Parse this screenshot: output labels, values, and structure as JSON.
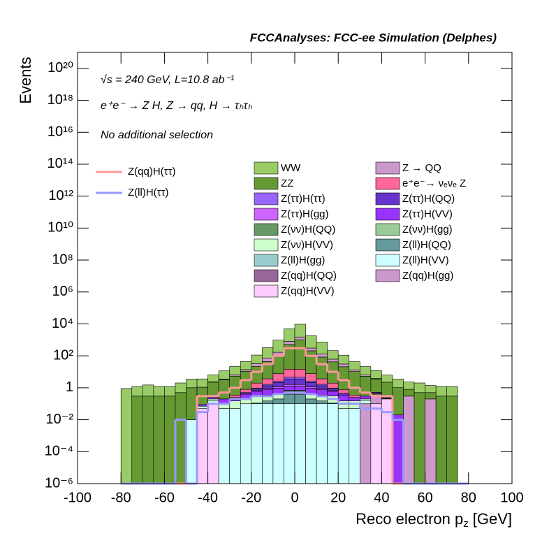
{
  "chart_data": {
    "type": "stacked_histogram",
    "title": "FCCAnalyses: FCC-ee Simulation (Delphes)",
    "energy_text": "√s = 240 GeV, L=10.8 ab⁻¹",
    "process_text": "e⁺e⁻ → Z H, Z → qq, H → τₕτₕ",
    "selection_text": "No additional selection",
    "y_label": "Events",
    "x_label": "Reco electron p",
    "x_label_subscript": "z",
    "x_label_unit": "[GeV]",
    "log_y": true,
    "xlim": [
      -100,
      100
    ],
    "xticks": [
      -100,
      -80,
      -60,
      -40,
      -20,
      0,
      20,
      40,
      60,
      80,
      100
    ],
    "ylim": [
      1e-06,
      1e+21
    ],
    "yticks": [
      {
        "value": 1e-06,
        "label": "10⁻⁶"
      },
      {
        "value": 0.0001,
        "label": "10⁻⁴"
      },
      {
        "value": 0.01,
        "label": "10⁻²"
      },
      1,
      {
        "value": 100,
        "label": "10²"
      },
      {
        "value": 10000.0,
        "label": "10⁴"
      },
      {
        "value": 1000000.0,
        "label": "10⁶"
      },
      {
        "value": 100000000.0,
        "label": "10⁸"
      },
      {
        "value": 10000000000.0,
        "label": "10¹⁰"
      },
      {
        "value": 1000000000000.0,
        "label": "10¹²"
      },
      {
        "value": 100000000000000.0,
        "label": "10¹⁴"
      },
      {
        "value": 1e+16,
        "label": "10¹⁶"
      },
      {
        "value": 1e+18,
        "label": "10¹⁸"
      },
      {
        "value": 1e+20,
        "label": "10²⁰"
      }
    ],
    "bins": [
      -80,
      -75,
      -70,
      -65,
      -60,
      -55,
      -50,
      -45,
      -40,
      -35,
      -30,
      -25,
      -20,
      -15,
      -10,
      -5,
      0,
      5,
      10,
      15,
      20,
      25,
      30,
      35,
      40,
      45,
      50,
      55,
      60,
      65,
      70,
      75,
      80
    ],
    "series": [
      {
        "name": "WW",
        "color": "#99cc66",
        "values": [
          0.9,
          0.9,
          1.2,
          0.9,
          0.9,
          1.5,
          2.5,
          2.5,
          4,
          8,
          15,
          30,
          80,
          250,
          800,
          4000,
          8000,
          1500,
          600,
          150,
          80,
          30,
          15,
          8,
          4,
          2.5,
          1.5,
          1.5,
          0.9,
          0.9,
          0.9,
          0
        ]
      },
      {
        "name": "Z → QQ",
        "color": "#cc99cc",
        "values": [
          0,
          0,
          0,
          0,
          0,
          0,
          0,
          0,
          0.1,
          0.3,
          1,
          3,
          10,
          30,
          60,
          300,
          500,
          100,
          50,
          20,
          10,
          3,
          1,
          0.3,
          0,
          0,
          0,
          0,
          0,
          0,
          0,
          0
        ]
      },
      {
        "name": "ZZ",
        "color": "#669933",
        "values": [
          0,
          0.3,
          0.3,
          0.3,
          0.3,
          0.5,
          1,
          1,
          2,
          3,
          5,
          10,
          20,
          40,
          100,
          500,
          1000,
          200,
          80,
          40,
          20,
          10,
          5,
          3,
          2,
          1,
          0.5,
          0.5,
          0.3,
          0.3,
          0.3,
          0
        ]
      },
      {
        "name": "e⁺e⁻→ νₑνₑ Z",
        "color": "#ff6699",
        "values": [
          0,
          0,
          0,
          0,
          0,
          0,
          0,
          0,
          0,
          0,
          0.1,
          0.3,
          1,
          2,
          5,
          10,
          10,
          5,
          2,
          1,
          0.3,
          0.1,
          0,
          0,
          0,
          0,
          0,
          0,
          0,
          0,
          0,
          0
        ]
      },
      {
        "name": "Z(ττ)H(ττ)",
        "color": "#9966ff",
        "values": [
          0,
          0,
          0,
          0,
          0,
          0,
          0,
          0,
          0,
          0,
          0,
          0,
          0.1,
          0.3,
          0.5,
          1,
          1,
          0.5,
          0.3,
          0.1,
          0,
          0,
          0,
          0,
          0,
          0,
          0,
          0,
          0,
          0,
          0,
          0
        ]
      },
      {
        "name": "Z(ττ)H(QQ)",
        "color": "#6633cc",
        "values": [
          0,
          0,
          0,
          0,
          0,
          0,
          0,
          0,
          0,
          0,
          0,
          0.1,
          0.2,
          0.5,
          1,
          2,
          2,
          1,
          0.5,
          0.2,
          0.1,
          0,
          0,
          0,
          0,
          0,
          0,
          0,
          0,
          0,
          0,
          0
        ]
      },
      {
        "name": "Z(ττ)H(gg)",
        "color": "#cc66ff",
        "values": [
          0,
          0,
          0,
          0,
          0,
          0,
          0,
          0,
          0,
          0,
          0,
          0,
          0.05,
          0.1,
          0.2,
          0.3,
          0.3,
          0.2,
          0.1,
          0.05,
          0,
          0,
          0,
          0,
          0,
          0,
          0,
          0,
          0,
          0,
          0,
          0
        ]
      },
      {
        "name": "Z(ττ)H(VV)",
        "color": "#9933ff",
        "values": [
          0,
          0,
          0,
          0,
          0,
          0,
          0,
          0.02,
          0.05,
          0.1,
          0.1,
          0.2,
          0.3,
          0.4,
          0.5,
          0.6,
          0.6,
          0.5,
          0.4,
          0.3,
          0.2,
          0.1,
          0.1,
          0.05,
          0.03,
          0.02,
          0,
          0,
          0,
          0,
          0,
          0
        ]
      },
      {
        "name": "Z(νν)H(QQ)",
        "color": "#669966",
        "values": [
          0,
          0,
          0,
          0,
          0,
          0,
          0,
          0,
          0,
          0,
          0,
          0,
          0,
          0,
          0.05,
          0.1,
          0.1,
          0.05,
          0,
          0,
          0,
          0,
          0,
          0,
          0,
          0,
          0,
          0,
          0,
          0,
          0,
          0
        ]
      },
      {
        "name": "Z(νν)H(gg)",
        "color": "#99cc99",
        "values": [
          0,
          0,
          0,
          0,
          0,
          0,
          0,
          0,
          0,
          0,
          0,
          0,
          0,
          0,
          0,
          0,
          0,
          0,
          0,
          0,
          0,
          0,
          0,
          0,
          0,
          0,
          0,
          0,
          0,
          0,
          0,
          0
        ]
      },
      {
        "name": "Z(νν)H(VV)",
        "color": "#ccffcc",
        "values": [
          0,
          0,
          0,
          0,
          0,
          0,
          0,
          0,
          0.05,
          0.05,
          0.1,
          0.1,
          0.2,
          0.2,
          0.2,
          0.2,
          0.2,
          0.2,
          0.2,
          0.2,
          0.1,
          0.1,
          0.05,
          0.05,
          0,
          0,
          0,
          0,
          0,
          0,
          0,
          0
        ]
      },
      {
        "name": "Z(ll)H(QQ)",
        "color": "#669999",
        "values": [
          0,
          0,
          0,
          0,
          0,
          0,
          0,
          0,
          0,
          0,
          0,
          0,
          0.01,
          0.05,
          0.1,
          0.3,
          0.3,
          0.1,
          0.05,
          0.01,
          0,
          0,
          0,
          0,
          0,
          0,
          0,
          0,
          0,
          0,
          0,
          0
        ]
      },
      {
        "name": "Z(ll)H(gg)",
        "color": "#99cccc",
        "values": [
          0,
          0,
          0,
          0,
          0,
          0,
          0,
          0,
          0,
          0,
          0,
          0,
          0,
          0,
          0,
          0,
          0,
          0,
          0,
          0,
          0,
          0,
          0,
          0,
          0,
          0,
          0,
          0,
          0,
          0,
          0,
          0
        ]
      },
      {
        "name": "Z(ll)H(VV)",
        "color": "#ccffff",
        "values": [
          0,
          0,
          0,
          0,
          0,
          0,
          0.01,
          0.02,
          0.05,
          0.05,
          0.05,
          0.1,
          0.1,
          0.1,
          0.1,
          0.1,
          0.1,
          0.1,
          0.1,
          0.1,
          0.05,
          0.05,
          0.05,
          0.02,
          0.01,
          0,
          0,
          0,
          0,
          0,
          0,
          0
        ]
      },
      {
        "name": "Z(qq)H(QQ)",
        "color": "#996699",
        "values": [
          0,
          0,
          0,
          0,
          0,
          0,
          0,
          0,
          0,
          0,
          0,
          0,
          0,
          0,
          0,
          0,
          0,
          0,
          0,
          0,
          0,
          0,
          0,
          0,
          0,
          0,
          0,
          0,
          0,
          0,
          0,
          0
        ]
      },
      {
        "name": "Z(qq)H(gg)",
        "color": "#cc99cc",
        "values": [
          0,
          0,
          0,
          0,
          0,
          0,
          0,
          0,
          0,
          0,
          0,
          0,
          0,
          0,
          0,
          0,
          0,
          0,
          0,
          0,
          0,
          0,
          0.1,
          0.3,
          0,
          0,
          0.3,
          0,
          0.2,
          0,
          0,
          0
        ]
      },
      {
        "name": "Z(qq)H(VV)",
        "color": "#ffccff",
        "values": [
          0,
          0,
          0,
          0,
          0,
          0,
          0,
          0.05,
          0.1,
          0,
          0,
          0,
          0,
          0,
          0,
          0,
          0,
          0,
          0,
          0,
          0,
          0,
          0,
          0.1,
          0.2,
          0,
          0,
          0,
          0,
          0,
          0,
          0
        ]
      }
    ],
    "line_series": [
      {
        "name": "Z(qq)H(ττ)",
        "color": "#ff9999",
        "values": [
          0,
          0,
          0,
          0,
          0,
          0,
          0,
          0.3,
          0.3,
          0.5,
          1,
          3,
          10,
          30,
          100,
          300,
          300,
          100,
          30,
          10,
          3,
          1,
          0.5,
          0.3,
          0.3,
          0,
          0,
          0,
          0,
          0,
          0,
          0
        ]
      },
      {
        "name": "Z(ll)H(ττ)",
        "color": "#9999ff",
        "values": [
          0,
          0,
          0,
          0,
          0,
          0.01,
          0,
          0.03,
          0.1,
          0.1,
          0.2,
          0.2,
          0.3,
          0.3,
          0.4,
          0.5,
          0.5,
          0.4,
          0.3,
          0.2,
          0.1,
          0.1,
          0.05,
          0.05,
          0.03,
          0.01,
          0,
          0,
          0,
          0,
          0,
          0
        ]
      }
    ]
  }
}
